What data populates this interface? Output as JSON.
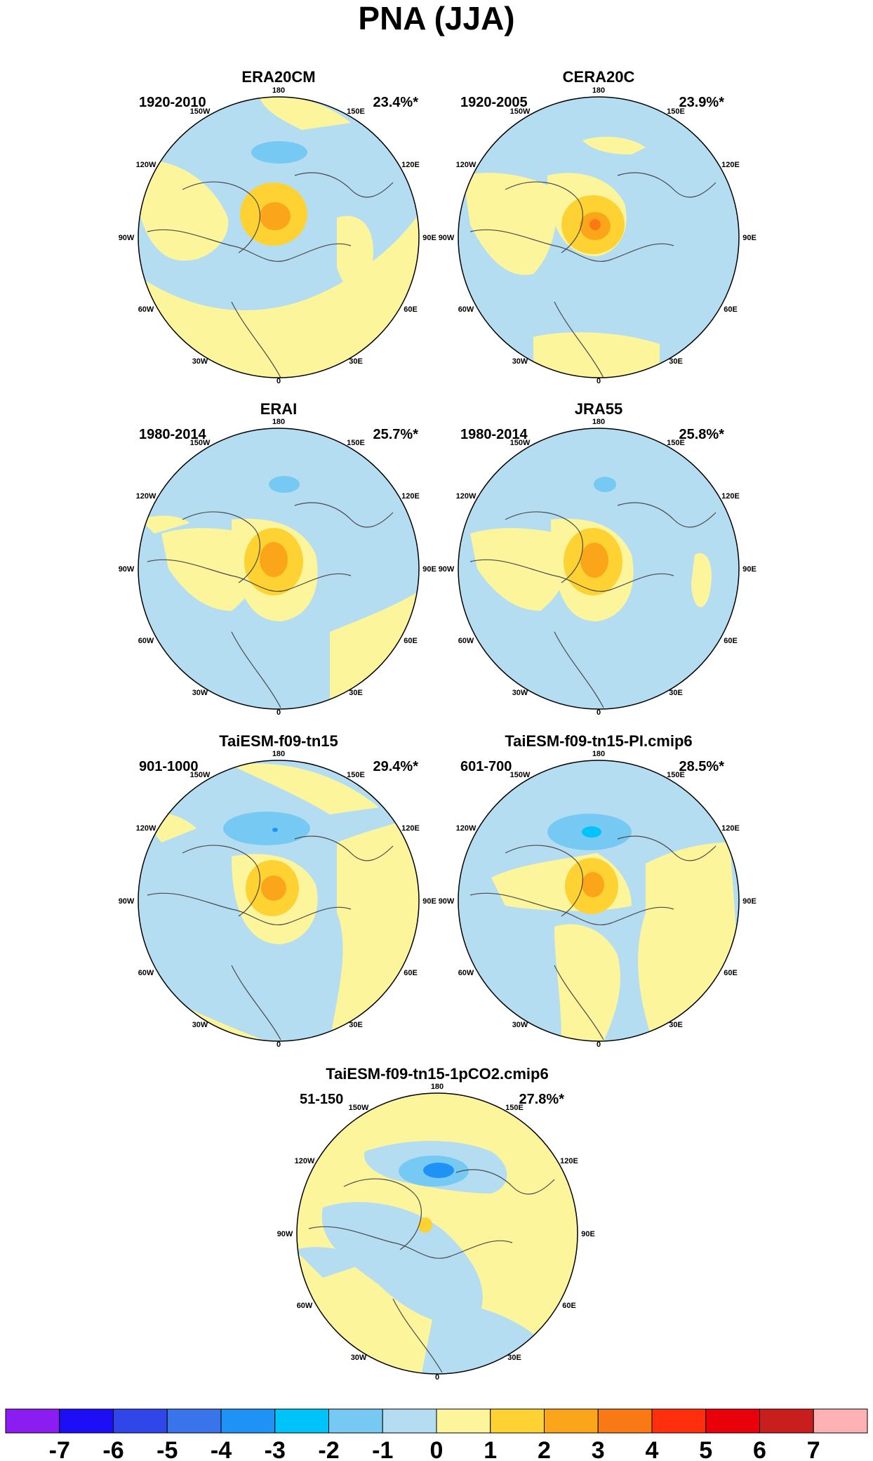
{
  "title": "PNA (JJA)",
  "lon_labels": [
    "180",
    "150E",
    "120E",
    "90E",
    "60E",
    "30E",
    "0",
    "30W",
    "60W",
    "90W",
    "120W",
    "150W"
  ],
  "panels": [
    {
      "name": "ERA20CM",
      "period": "1920-2010",
      "variance": "23.4%*"
    },
    {
      "name": "CERA20C",
      "period": "1920-2005",
      "variance": "23.9%*"
    },
    {
      "name": "ERAI",
      "period": "1980-2014",
      "variance": "25.7%*"
    },
    {
      "name": "JRA55",
      "period": "1980-2014",
      "variance": "25.8%*"
    },
    {
      "name": "TaiESM-f09-tn15",
      "period": "901-1000",
      "variance": "29.4%*"
    },
    {
      "name": "TaiESM-f09-tn15-PI.cmip6",
      "period": "601-700",
      "variance": "28.5%*"
    },
    {
      "name": "TaiESM-f09-tn15-1pCO2.cmip6",
      "period": "51-150",
      "variance": "27.8%*"
    }
  ],
  "colorbar": {
    "labels": [
      "-7",
      "-6",
      "-5",
      "-4",
      "-3",
      "-2",
      "-1",
      "0",
      "1",
      "2",
      "3",
      "4",
      "5",
      "6",
      "7"
    ],
    "colors": [
      "#8b1cf2",
      "#1c0ff5",
      "#2f46e8",
      "#3a74eb",
      "#1e93f5",
      "#00c3fa",
      "#75c9f2",
      "#b5ddf2",
      "#fdf59b",
      "#fdd232",
      "#fba61a",
      "#f97a14",
      "#ff2f0d",
      "#e8000b",
      "#c81e1e",
      "#ffb2b4"
    ]
  },
  "map_colors": {
    "land_line": "#4a4a4a",
    "neutral_neg": "#b5ddf2",
    "neutral_pos": "#fdf59b"
  }
}
